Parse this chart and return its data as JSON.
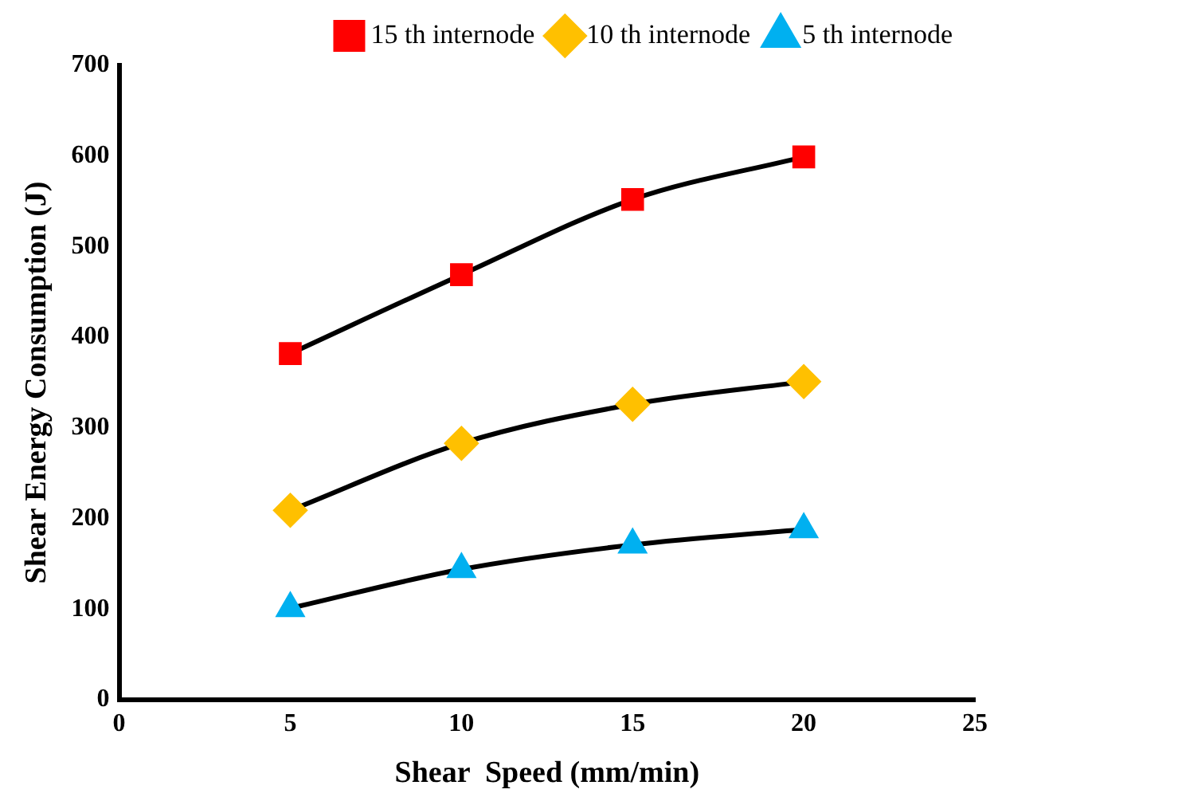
{
  "chart_data": {
    "type": "line",
    "xlabel": "Shear  Speed (mm/min)",
    "ylabel": "Shear Energy Consumption (J)",
    "x": [
      5,
      10,
      15,
      20
    ],
    "series": [
      {
        "name": "15 th internode",
        "color": "#ff0000",
        "marker": "square",
        "values": [
          382,
          469,
          552,
          599
        ]
      },
      {
        "name": "10 th internode",
        "color": "#ffc000",
        "marker": "diamond",
        "values": [
          209,
          283,
          326,
          351
        ]
      },
      {
        "name": "5 th internode",
        "color": "#00b0f0",
        "marker": "triangle",
        "values": [
          101,
          144,
          171,
          188
        ]
      }
    ],
    "xlim": [
      0,
      25
    ],
    "xticks": [
      0,
      5,
      10,
      15,
      20,
      25
    ],
    "ylim": [
      0,
      700
    ],
    "yticks": [
      0,
      100,
      200,
      300,
      400,
      500,
      600,
      700
    ],
    "grid": false,
    "legend": "top right",
    "line_style": "solid"
  }
}
